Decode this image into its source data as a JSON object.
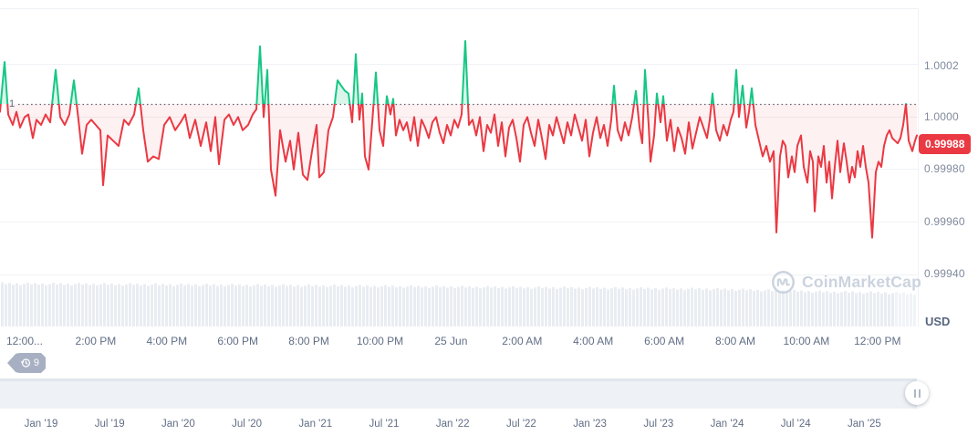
{
  "watermark": {
    "label": "CoinMarketCap"
  },
  "history_badge": {
    "count": "9"
  },
  "peg_line": {
    "label": "1"
  },
  "y_axis": {
    "unit_label": "USD",
    "current_price_badge": "0.99988",
    "ticks": [
      "1.0002",
      "1.0000",
      "0.99980",
      "0.99960",
      "0.99940"
    ]
  },
  "x_axis": {
    "ticks": [
      "12:00...",
      "2:00 PM",
      "4:00 PM",
      "6:00 PM",
      "8:00 PM",
      "10:00 PM",
      "25 Jun",
      "2:00 AM",
      "4:00 AM",
      "6:00 AM",
      "8:00 AM",
      "10:00 AM",
      "12:00 PM"
    ]
  },
  "navigator": {
    "dates": [
      "Jan '19",
      "Jul '19",
      "Jan '20",
      "Jul '20",
      "Jan '21",
      "Jul '21",
      "Jan '22",
      "Jul '22",
      "Jan '23",
      "Jul '23",
      "Jan '24",
      "Jul '24",
      "Jan '25"
    ]
  },
  "colors": {
    "up": "#16c784",
    "up_fill": "rgba(22,199,132,0.16)",
    "down": "#ea3943",
    "down_fill": "rgba(234,57,67,0.07)",
    "grid": "#eff2f5",
    "axis_text": "#808a9d",
    "dark_text": "#616e85",
    "volume_bar": "#e9edf2",
    "volume_bar_tail": "#f0f3f7",
    "navigator_band": "#eef1f5",
    "badge_bg": "#ea3943",
    "dotted_peg": "#5a6270",
    "watermark": "#cbd3df"
  },
  "chart_data": {
    "type": "line",
    "title": "Stablecoin price chart (USD), 24h window of Jun 24 12:00 PM - Jun 25 12:00 PM",
    "ylabel": "USD",
    "y_ticks": [
      1.0002,
      1.0,
      0.9998,
      0.9996,
      0.9994
    ],
    "current_price": 0.99988,
    "peg_reference": 1.0,
    "x_tick_labels": [
      "12:00...",
      "2:00 PM",
      "4:00 PM",
      "6:00 PM",
      "8:00 PM",
      "10:00 PM",
      "25 Jun",
      "2:00 AM",
      "4:00 AM",
      "6:00 AM",
      "8:00 AM",
      "10:00 AM",
      "12:00 PM"
    ],
    "legend": "off",
    "grid": "horizontal, faint",
    "color_rule": "green above 1.0 peg, red below; translucent fill between line and peg",
    "points_format": "[x_px, price_offset] where price = 1.00000 + price_offset * 0.00001",
    "points": [
      [
        0,
        -3
      ],
      [
        5,
        16
      ],
      [
        9,
        -4
      ],
      [
        14,
        -8
      ],
      [
        18,
        -3
      ],
      [
        22,
        -9
      ],
      [
        27,
        -5
      ],
      [
        31,
        -4
      ],
      [
        36,
        -13
      ],
      [
        40,
        -6
      ],
      [
        45,
        -8
      ],
      [
        50,
        -4
      ],
      [
        55,
        -7
      ],
      [
        61,
        13
      ],
      [
        66,
        -5
      ],
      [
        71,
        -8
      ],
      [
        76,
        -4
      ],
      [
        81,
        9
      ],
      [
        86,
        -6
      ],
      [
        90,
        -19
      ],
      [
        95,
        -8
      ],
      [
        100,
        -6
      ],
      [
        105,
        -8
      ],
      [
        110,
        -10
      ],
      [
        113,
        -31
      ],
      [
        118,
        -12
      ],
      [
        124,
        -14
      ],
      [
        130,
        -16
      ],
      [
        136,
        -6
      ],
      [
        141,
        -8
      ],
      [
        147,
        -4
      ],
      [
        152,
        6
      ],
      [
        157,
        -10
      ],
      [
        162,
        -22
      ],
      [
        168,
        -20
      ],
      [
        174,
        -21
      ],
      [
        180,
        -8
      ],
      [
        186,
        -5
      ],
      [
        192,
        -10
      ],
      [
        198,
        -7
      ],
      [
        203,
        -4
      ],
      [
        208,
        -13
      ],
      [
        214,
        -6
      ],
      [
        220,
        -16
      ],
      [
        226,
        -7
      ],
      [
        231,
        -18
      ],
      [
        236,
        -5
      ],
      [
        240,
        -23
      ],
      [
        246,
        -6
      ],
      [
        251,
        -4
      ],
      [
        256,
        -8
      ],
      [
        261,
        -5
      ],
      [
        266,
        -10
      ],
      [
        272,
        -8
      ],
      [
        277,
        -4
      ],
      [
        281,
        -2
      ],
      [
        285,
        22
      ],
      [
        289,
        -5
      ],
      [
        293,
        13
      ],
      [
        297,
        -25
      ],
      [
        302,
        -35
      ],
      [
        307,
        -10
      ],
      [
        313,
        -22
      ],
      [
        318,
        -14
      ],
      [
        322,
        -25
      ],
      [
        327,
        -11
      ],
      [
        332,
        -27
      ],
      [
        337,
        -29
      ],
      [
        342,
        -18
      ],
      [
        347,
        -8
      ],
      [
        350,
        -28
      ],
      [
        355,
        -26
      ],
      [
        360,
        -10
      ],
      [
        365,
        -5
      ],
      [
        370,
        9
      ],
      [
        374,
        7
      ],
      [
        378,
        5
      ],
      [
        382,
        4
      ],
      [
        386,
        -7
      ],
      [
        390,
        19
      ],
      [
        394,
        -6
      ],
      [
        397,
        4
      ],
      [
        400,
        -20
      ],
      [
        404,
        -25
      ],
      [
        408,
        -7
      ],
      [
        412,
        12
      ],
      [
        416,
        -10
      ],
      [
        420,
        -16
      ],
      [
        424,
        3
      ],
      [
        428,
        -4
      ],
      [
        431,
        2
      ],
      [
        434,
        -12
      ],
      [
        438,
        -6
      ],
      [
        442,
        -10
      ],
      [
        446,
        -7
      ],
      [
        450,
        -14
      ],
      [
        454,
        -5
      ],
      [
        458,
        -16
      ],
      [
        462,
        -6
      ],
      [
        466,
        -9
      ],
      [
        470,
        -13
      ],
      [
        474,
        -7
      ],
      [
        478,
        -5
      ],
      [
        482,
        -11
      ],
      [
        486,
        -15
      ],
      [
        490,
        -8
      ],
      [
        494,
        -12
      ],
      [
        498,
        -6
      ],
      [
        502,
        -9
      ],
      [
        506,
        -4
      ],
      [
        510,
        24
      ],
      [
        514,
        -8
      ],
      [
        518,
        -6
      ],
      [
        522,
        -12
      ],
      [
        526,
        -5
      ],
      [
        530,
        -18
      ],
      [
        534,
        -8
      ],
      [
        538,
        -11
      ],
      [
        542,
        -4
      ],
      [
        546,
        -16
      ],
      [
        550,
        -7
      ],
      [
        554,
        -20
      ],
      [
        558,
        -9
      ],
      [
        562,
        -6
      ],
      [
        566,
        -13
      ],
      [
        570,
        -22
      ],
      [
        574,
        -8
      ],
      [
        578,
        -5
      ],
      [
        582,
        -11
      ],
      [
        586,
        -16
      ],
      [
        590,
        -6
      ],
      [
        594,
        -13
      ],
      [
        598,
        -21
      ],
      [
        602,
        -8
      ],
      [
        606,
        -12
      ],
      [
        610,
        -5
      ],
      [
        614,
        -10
      ],
      [
        618,
        -15
      ],
      [
        622,
        -7
      ],
      [
        626,
        -12
      ],
      [
        630,
        -4
      ],
      [
        634,
        -9
      ],
      [
        638,
        -14
      ],
      [
        642,
        -6
      ],
      [
        646,
        -20
      ],
      [
        650,
        -11
      ],
      [
        654,
        -5
      ],
      [
        658,
        -13
      ],
      [
        662,
        -8
      ],
      [
        666,
        -16
      ],
      [
        670,
        -6
      ],
      [
        673,
        7
      ],
      [
        677,
        -10
      ],
      [
        681,
        -14
      ],
      [
        685,
        -7
      ],
      [
        689,
        -12
      ],
      [
        693,
        -5
      ],
      [
        697,
        5
      ],
      [
        701,
        -9
      ],
      [
        704,
        -15
      ],
      [
        707,
        13
      ],
      [
        711,
        -8
      ],
      [
        713,
        -22
      ],
      [
        717,
        -12
      ],
      [
        720,
        4
      ],
      [
        724,
        -7
      ],
      [
        727,
        3
      ],
      [
        731,
        -14
      ],
      [
        735,
        -6
      ],
      [
        739,
        -18
      ],
      [
        743,
        -9
      ],
      [
        747,
        -13
      ],
      [
        751,
        -19
      ],
      [
        755,
        -7
      ],
      [
        759,
        -17
      ],
      [
        763,
        -11
      ],
      [
        767,
        -5
      ],
      [
        771,
        -9
      ],
      [
        775,
        -13
      ],
      [
        778,
        -6
      ],
      [
        781,
        4
      ],
      [
        785,
        -10
      ],
      [
        789,
        -14
      ],
      [
        793,
        -8
      ],
      [
        797,
        -12
      ],
      [
        801,
        -6
      ],
      [
        804,
        -3
      ],
      [
        807,
        13
      ],
      [
        810,
        -5
      ],
      [
        814,
        7
      ],
      [
        818,
        -9
      ],
      [
        821,
        -3
      ],
      [
        824,
        6
      ],
      [
        828,
        -8
      ],
      [
        832,
        -14
      ],
      [
        836,
        -20
      ],
      [
        840,
        -16
      ],
      [
        844,
        -22
      ],
      [
        848,
        -18
      ],
      [
        851,
        -49
      ],
      [
        855,
        -20
      ],
      [
        858,
        -14
      ],
      [
        861,
        -16
      ],
      [
        864,
        -28
      ],
      [
        868,
        -20
      ],
      [
        871,
        -26
      ],
      [
        874,
        -16
      ],
      [
        878,
        -12
      ],
      [
        881,
        -24
      ],
      [
        885,
        -30
      ],
      [
        888,
        -18
      ],
      [
        891,
        -22
      ],
      [
        893,
        -41
      ],
      [
        897,
        -20
      ],
      [
        900,
        -24
      ],
      [
        903,
        -16
      ],
      [
        906,
        -30
      ],
      [
        909,
        -22
      ],
      [
        912,
        -36
      ],
      [
        915,
        -24
      ],
      [
        918,
        -14
      ],
      [
        921,
        -26
      ],
      [
        925,
        -15
      ],
      [
        928,
        -22
      ],
      [
        931,
        -30
      ],
      [
        934,
        -24
      ],
      [
        937,
        -28
      ],
      [
        940,
        -18
      ],
      [
        943,
        -24
      ],
      [
        946,
        -16
      ],
      [
        949,
        -24
      ],
      [
        952,
        -30
      ],
      [
        956,
        -51
      ],
      [
        960,
        -26
      ],
      [
        963,
        -22
      ],
      [
        966,
        -24
      ],
      [
        969,
        -16
      ],
      [
        972,
        -12
      ],
      [
        975,
        -10
      ],
      [
        978,
        -13
      ],
      [
        981,
        -14
      ],
      [
        984,
        -15
      ],
      [
        987,
        -13
      ],
      [
        990,
        -8
      ],
      [
        993,
        0
      ],
      [
        996,
        -14
      ],
      [
        1000,
        -18
      ],
      [
        1003,
        -14
      ],
      [
        1005,
        -12
      ]
    ],
    "volume_profile_keypoints": [
      [
        0,
        47
      ],
      [
        150,
        46
      ],
      [
        300,
        45
      ],
      [
        420,
        44
      ],
      [
        540,
        43
      ],
      [
        660,
        42
      ],
      [
        780,
        41
      ],
      [
        900,
        38
      ],
      [
        960,
        37
      ],
      [
        1005,
        36
      ]
    ],
    "navigator_range_labels": [
      "Jan '19",
      "Jul '19",
      "Jan '20",
      "Jul '20",
      "Jan '21",
      "Jul '21",
      "Jan '22",
      "Jul '22",
      "Jan '23",
      "Jul '23",
      "Jan '24",
      "Jul '24",
      "Jan '25"
    ]
  }
}
